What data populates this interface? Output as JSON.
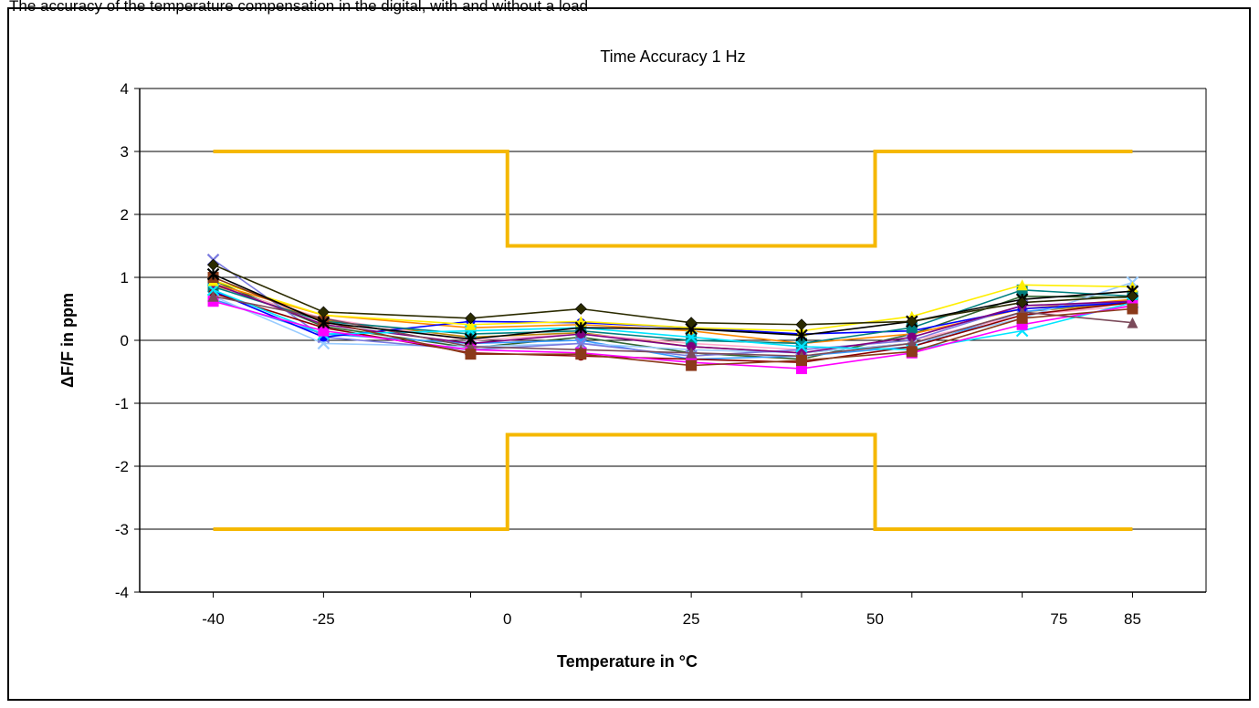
{
  "caption": "The accuracy of the temperature compensation in the digital, with and without a load",
  "chart_data": {
    "type": "line",
    "title": "Time Accuracy 1 Hz",
    "xlabel": "Temperature in °C",
    "ylabel": "ΔF/F  in ppm",
    "ylim": [
      -4,
      4
    ],
    "xlim": [
      -50,
      95
    ],
    "yticks": [
      "4",
      "3",
      "2",
      "1",
      "0",
      "-1",
      "-2",
      "-3",
      "-4"
    ],
    "xticks": [
      "-40",
      "-25",
      "0",
      "25",
      "50",
      "75",
      "85"
    ],
    "x_positions": [
      -40,
      -25,
      -5,
      10,
      25,
      40,
      55,
      70,
      85
    ],
    "grid": true,
    "limits": {
      "color": "#f5b800",
      "upper": [
        [
          -40,
          3
        ],
        [
          0,
          3
        ],
        [
          0,
          1.5
        ],
        [
          50,
          1.5
        ],
        [
          50,
          3
        ],
        [
          85,
          3
        ]
      ],
      "lower": [
        [
          -40,
          -3
        ],
        [
          0,
          -3
        ],
        [
          0,
          -1.5
        ],
        [
          50,
          -1.5
        ],
        [
          50,
          -3
        ],
        [
          85,
          -3
        ]
      ]
    },
    "series": [
      {
        "color": "#2b2b00",
        "marker": "diamond",
        "values": [
          1.2,
          0.45,
          0.35,
          0.5,
          0.28,
          0.25,
          0.3,
          0.6,
          0.7
        ]
      },
      {
        "color": "#000000",
        "marker": "star",
        "values": [
          1.05,
          0.28,
          0.02,
          0.2,
          0.18,
          0.08,
          0.3,
          0.65,
          0.78
        ]
      },
      {
        "color": "#8b3a1a",
        "marker": "square",
        "values": [
          1.0,
          0.3,
          -0.22,
          -0.22,
          -0.4,
          -0.32,
          -0.18,
          0.35,
          0.5
        ]
      },
      {
        "color": "#7b4a5a",
        "marker": "triangle",
        "values": [
          0.7,
          0.35,
          -0.1,
          -0.15,
          -0.2,
          -0.25,
          -0.05,
          0.45,
          0.28
        ]
      },
      {
        "color": "#ff00ff",
        "marker": "square",
        "values": [
          0.62,
          0.15,
          -0.15,
          -0.2,
          -0.35,
          -0.45,
          -0.2,
          0.25,
          0.55
        ]
      },
      {
        "color": "#ffee00",
        "marker": "triangle",
        "values": [
          0.95,
          0.4,
          0.25,
          0.3,
          0.2,
          0.15,
          0.38,
          0.88,
          0.85
        ]
      },
      {
        "color": "#00e5ff",
        "marker": "cross",
        "values": [
          0.8,
          0.1,
          0.15,
          0.2,
          0.05,
          -0.1,
          -0.15,
          0.15,
          0.6
        ]
      },
      {
        "color": "#800080",
        "marker": "circle",
        "values": [
          0.9,
          0.25,
          -0.05,
          0.1,
          -0.1,
          -0.2,
          0.05,
          0.55,
          0.62
        ]
      },
      {
        "color": "#8b0000",
        "marker": "circle",
        "values": [
          0.75,
          0.2,
          -0.2,
          -0.25,
          -0.3,
          -0.35,
          -0.1,
          0.4,
          0.6
        ]
      },
      {
        "color": "#008080",
        "marker": "square",
        "values": [
          0.85,
          0.3,
          0.1,
          0.15,
          0.0,
          -0.05,
          0.2,
          0.8,
          0.7
        ]
      },
      {
        "color": "#0000ff",
        "marker": "circle",
        "values": [
          0.78,
          0.05,
          0.3,
          0.28,
          0.2,
          0.1,
          0.15,
          0.5,
          0.6
        ]
      },
      {
        "color": "#7a7adf",
        "marker": "cross",
        "values": [
          1.28,
          0.05,
          -0.15,
          -0.05,
          -0.25,
          -0.15,
          0.0,
          0.55,
          0.6
        ]
      },
      {
        "color": "#99ccff",
        "marker": "cross",
        "values": [
          0.7,
          -0.05,
          -0.1,
          -0.05,
          -0.15,
          -0.2,
          -0.05,
          0.35,
          0.92
        ]
      },
      {
        "color": "#ff8800",
        "marker": "circle",
        "values": [
          0.9,
          0.4,
          0.2,
          0.25,
          0.15,
          -0.05,
          0.1,
          0.5,
          0.65
        ]
      },
      {
        "color": "#ffaacc",
        "marker": "circle",
        "values": [
          0.85,
          0.35,
          0.0,
          0.1,
          -0.05,
          -0.15,
          0.0,
          0.4,
          0.55
        ]
      },
      {
        "color": "#3399ff",
        "marker": "circle",
        "values": [
          0.65,
          0.1,
          -0.05,
          0.0,
          -0.3,
          -0.25,
          -0.1,
          0.45,
          0.65
        ]
      },
      {
        "color": "#336633",
        "marker": "circle",
        "values": [
          0.95,
          0.22,
          -0.12,
          0.05,
          -0.2,
          -0.3,
          0.1,
          0.7,
          0.68
        ]
      },
      {
        "color": "#b8860b",
        "marker": "circle",
        "values": [
          0.88,
          0.32,
          0.05,
          0.12,
          -0.1,
          -0.2,
          -0.05,
          0.45,
          0.6
        ]
      }
    ]
  }
}
